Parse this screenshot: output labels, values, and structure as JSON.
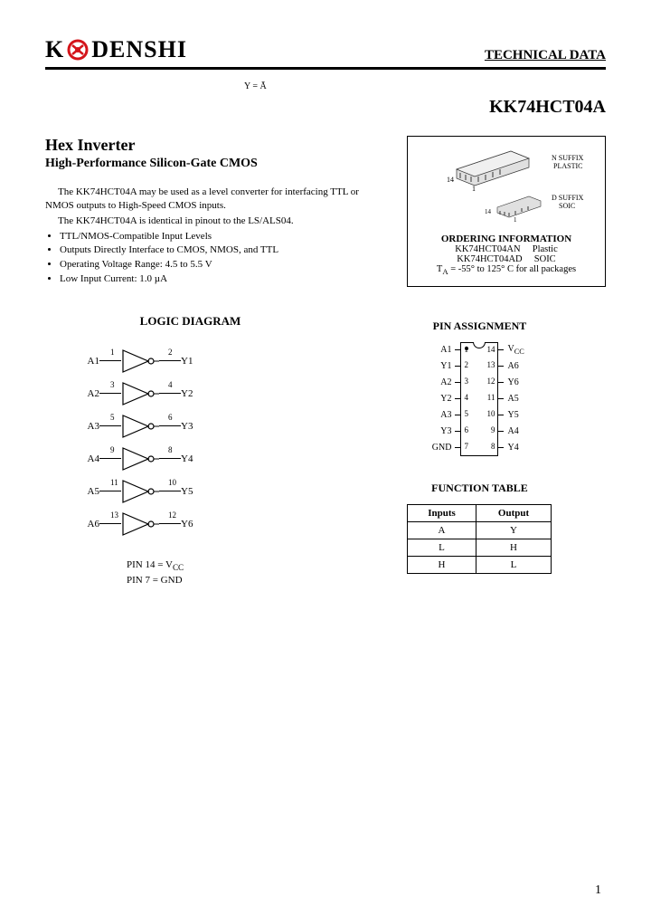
{
  "header": {
    "logo_text_left": "K",
    "logo_text_right": "DENSHI",
    "tech_data": "TECHNICAL DATA"
  },
  "part_number": "KK74HCT04A",
  "titles": {
    "main": "Hex Inverter",
    "sub": "High-Performance Silicon-Gate CMOS"
  },
  "intro": {
    "p1": "The KK74HCT04A may be used as a level converter for interfacing TTL or NMOS outputs to High-Speed CMOS inputs.",
    "p2": "The KK74HCT04A is identical in pinout to the LS/ALS04."
  },
  "bullets": [
    "TTL/NMOS-Compatible Input Levels",
    "Outputs Directly Interface to CMOS, NMOS, and TTL",
    "Operating Voltage Range: 4.5 to 5.5 V",
    "Low Input Current: 1.0 µA"
  ],
  "package": {
    "n_suffix": "N SUFFIX",
    "plastic": "PLASTIC",
    "d_suffix": "D SUFFIX",
    "soic": "SOIC",
    "pin14": "14",
    "pin1": "1",
    "ordering_title": "ORDERING INFORMATION",
    "line1_pn": "KK74HCT04AN",
    "line1_pkg": "Plastic",
    "line2_pn": "KK74HCT04AD",
    "line2_pkg": "SOIC",
    "temp": "T",
    "temp_sub": "A",
    "temp_rest": " = -55° to 125° C for all packages"
  },
  "logic": {
    "title": "LOGIC DIAGRAM",
    "gates": [
      {
        "in_lbl": "A1",
        "in_pin": "1",
        "out_pin": "2",
        "out_lbl": "Y1"
      },
      {
        "in_lbl": "A2",
        "in_pin": "3",
        "out_pin": "4",
        "out_lbl": "Y2"
      },
      {
        "in_lbl": "A3",
        "in_pin": "5",
        "out_pin": "6",
        "out_lbl": "Y3"
      },
      {
        "in_lbl": "A4",
        "in_pin": "9",
        "out_pin": "8",
        "out_lbl": "Y4"
      },
      {
        "in_lbl": "A5",
        "in_pin": "11",
        "out_pin": "10",
        "out_lbl": "Y5"
      },
      {
        "in_lbl": "A6",
        "in_pin": "13",
        "out_pin": "12",
        "out_lbl": "Y6"
      }
    ],
    "equation": "Y = Ā",
    "pin_note_1": "PIN 14 = V",
    "pin_note_1_sub": "CC",
    "pin_note_2": "PIN 7 = GND"
  },
  "pin_assignment": {
    "title": "PIN ASSIGNMENT",
    "rows": [
      {
        "l": "A1",
        "ln": "1",
        "rn": "14",
        "r": "V",
        "rsub": "CC"
      },
      {
        "l": "Y1",
        "ln": "2",
        "rn": "13",
        "r": "A6"
      },
      {
        "l": "A2",
        "ln": "3",
        "rn": "12",
        "r": "Y6"
      },
      {
        "l": "Y2",
        "ln": "4",
        "rn": "11",
        "r": "A5"
      },
      {
        "l": "A3",
        "ln": "5",
        "rn": "10",
        "r": "Y5"
      },
      {
        "l": "Y3",
        "ln": "6",
        "rn": "9",
        "r": "A4"
      },
      {
        "l": "GND",
        "ln": "7",
        "rn": "8",
        "r": "Y4"
      }
    ]
  },
  "function_table": {
    "title": "FUNCTION TABLE",
    "h1": "Inputs",
    "h2": "Output",
    "h1b": "A",
    "h2b": "Y",
    "rows": [
      {
        "a": "L",
        "y": "H"
      },
      {
        "a": "H",
        "y": "L"
      }
    ]
  },
  "page_number": "1",
  "colors": {
    "logo_red": "#d4141a"
  }
}
